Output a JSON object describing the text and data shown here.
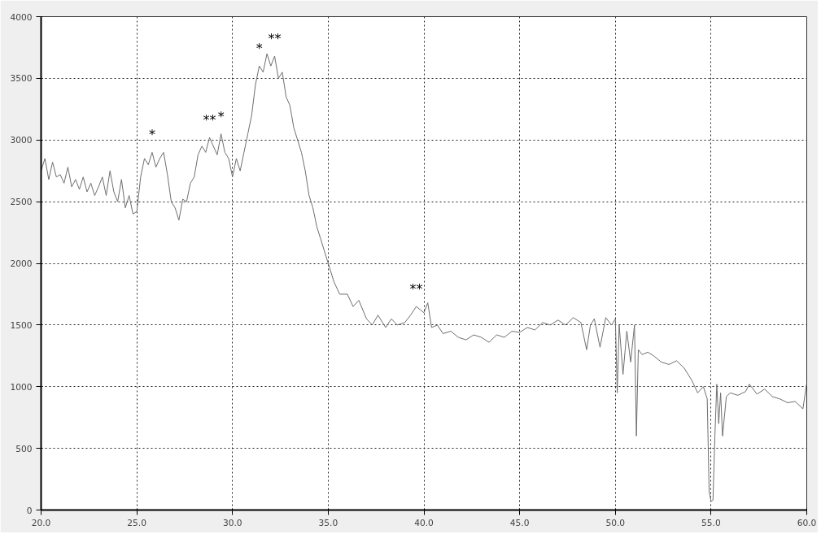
{
  "chart_data": {
    "type": "line",
    "x": [
      20.0,
      20.2,
      20.4,
      20.6,
      20.8,
      21.0,
      21.2,
      21.4,
      21.6,
      21.8,
      22.0,
      22.2,
      22.4,
      22.6,
      22.8,
      23.0,
      23.2,
      23.4,
      23.6,
      23.8,
      24.0,
      24.2,
      24.4,
      24.6,
      24.8,
      25.0,
      25.2,
      25.4,
      25.6,
      25.8,
      26.0,
      26.2,
      26.4,
      26.6,
      26.8,
      27.0,
      27.2,
      27.4,
      27.6,
      27.8,
      28.0,
      28.2,
      28.4,
      28.6,
      28.8,
      29.0,
      29.2,
      29.4,
      29.6,
      29.8,
      30.0,
      30.2,
      30.4,
      30.6,
      30.8,
      31.0,
      31.2,
      31.4,
      31.6,
      31.8,
      32.0,
      32.2,
      32.4,
      32.6,
      32.8,
      33.0,
      33.2,
      33.4,
      33.6,
      33.8,
      34.0,
      34.2,
      34.4,
      34.6,
      34.8,
      35.0,
      35.3,
      35.6,
      36.0,
      36.3,
      36.6,
      37.0,
      37.3,
      37.6,
      38.0,
      38.3,
      38.6,
      39.0,
      39.3,
      39.6,
      40.0,
      40.2,
      40.4,
      40.7,
      41.0,
      41.4,
      41.8,
      42.2,
      42.6,
      43.0,
      43.4,
      43.8,
      44.2,
      44.6,
      45.0,
      45.4,
      45.8,
      46.2,
      46.6,
      47.0,
      47.4,
      47.8,
      48.2,
      48.5,
      48.7,
      48.9,
      49.2,
      49.5,
      49.8,
      50.0,
      50.1,
      50.2,
      50.4,
      50.6,
      50.8,
      51.0,
      51.1,
      51.2,
      51.4,
      51.7,
      52.0,
      52.4,
      52.8,
      53.2,
      53.6,
      54.0,
      54.3,
      54.6,
      54.8,
      54.9,
      55.0,
      55.1,
      55.2,
      55.3,
      55.4,
      55.5,
      55.6,
      55.8,
      56.0,
      56.4,
      56.8,
      57.0,
      57.4,
      57.8,
      58.2,
      58.6,
      59.0,
      59.4,
      59.8,
      60.0
    ],
    "values": [
      2750,
      2850,
      2680,
      2820,
      2700,
      2720,
      2650,
      2780,
      2620,
      2680,
      2600,
      2700,
      2580,
      2650,
      2550,
      2620,
      2700,
      2550,
      2750,
      2580,
      2500,
      2680,
      2450,
      2550,
      2400,
      2420,
      2700,
      2850,
      2800,
      2900,
      2780,
      2850,
      2900,
      2720,
      2500,
      2450,
      2350,
      2520,
      2500,
      2650,
      2700,
      2880,
      2950,
      2900,
      3020,
      2950,
      2880,
      3050,
      2900,
      2850,
      2700,
      2850,
      2750,
      2900,
      3050,
      3200,
      3450,
      3600,
      3550,
      3700,
      3600,
      3680,
      3500,
      3550,
      3350,
      3280,
      3100,
      3000,
      2900,
      2750,
      2550,
      2450,
      2300,
      2200,
      2100,
      2000,
      1850,
      1750,
      1750,
      1650,
      1700,
      1550,
      1500,
      1580,
      1480,
      1550,
      1500,
      1520,
      1580,
      1650,
      1600,
      1680,
      1480,
      1500,
      1430,
      1450,
      1400,
      1380,
      1420,
      1400,
      1360,
      1420,
      1400,
      1450,
      1440,
      1480,
      1460,
      1520,
      1500,
      1540,
      1500,
      1560,
      1520,
      1300,
      1500,
      1550,
      1320,
      1560,
      1500,
      1550,
      950,
      1500,
      1100,
      1450,
      1200,
      1500,
      600,
      1300,
      1260,
      1280,
      1250,
      1200,
      1180,
      1210,
      1150,
      1050,
      950,
      1000,
      900,
      150,
      70,
      80,
      600,
      1020,
      700,
      950,
      600,
      920,
      950,
      930,
      960,
      1020,
      940,
      980,
      920,
      900,
      870,
      880,
      820,
      1030
    ],
    "color": "#6e6e6e",
    "xlim": [
      20,
      60
    ],
    "ylim": [
      0,
      4000
    ],
    "xticks": [
      {
        "value": 20,
        "label": "20.0"
      },
      {
        "value": 25,
        "label": "25.0"
      },
      {
        "value": 30,
        "label": "30.0"
      },
      {
        "value": 35,
        "label": "35.0"
      },
      {
        "value": 40,
        "label": "40.0"
      },
      {
        "value": 45,
        "label": "45.0"
      },
      {
        "value": 50,
        "label": "50.0"
      },
      {
        "value": 55,
        "label": "55.0"
      },
      {
        "value": 60,
        "label": "60.0"
      }
    ],
    "yticks": [
      0,
      500,
      1000,
      1500,
      2000,
      2500,
      3000,
      3500,
      4000
    ],
    "grid": true,
    "line_style": "solid",
    "annotations": [
      {
        "text": "*",
        "x": 25.8,
        "y": 2900
      },
      {
        "text": "**",
        "x": 28.8,
        "y": 3020
      },
      {
        "text": "*",
        "x": 29.4,
        "y": 3050
      },
      {
        "text": "*",
        "x": 31.4,
        "y": 3600
      },
      {
        "text": "**",
        "x": 32.2,
        "y": 3680
      },
      {
        "text": "**",
        "x": 39.6,
        "y": 1650
      }
    ]
  }
}
